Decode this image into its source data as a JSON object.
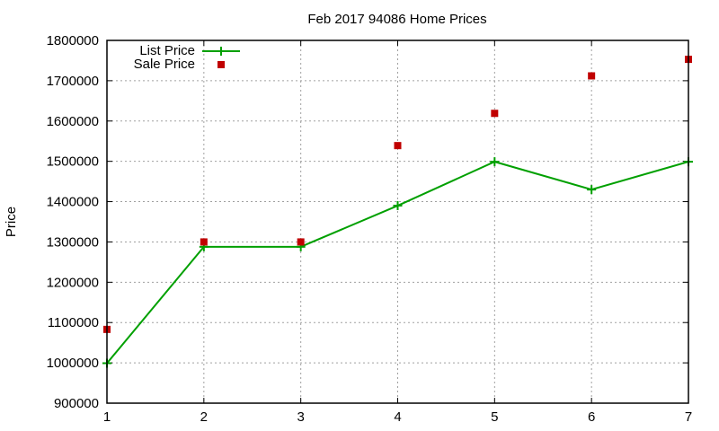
{
  "chart_data": {
    "type": "line",
    "title": "Feb 2017 94086 Home Prices",
    "xlabel": "",
    "ylabel": "Price",
    "x": [
      1,
      2,
      3,
      4,
      5,
      6,
      7
    ],
    "xlim": [
      1,
      7
    ],
    "ylim": [
      900000,
      1800000
    ],
    "xticks": [
      "1",
      "2",
      "3",
      "4",
      "5",
      "6",
      "7"
    ],
    "yticks": [
      "900000",
      "1000000",
      "1100000",
      "1200000",
      "1300000",
      "1400000",
      "1500000",
      "1600000",
      "1700000",
      "1800000"
    ],
    "grid": true,
    "legend_position": "top-left",
    "series": [
      {
        "name": "List Price",
        "style": "linespoints",
        "color": "#00a000",
        "values": [
          999000,
          1288000,
          1288000,
          1390000,
          1499000,
          1430000,
          1499000
        ]
      },
      {
        "name": "Sale Price",
        "style": "points",
        "color": "#c00000",
        "values": [
          1083000,
          1300000,
          1300000,
          1539000,
          1619000,
          1712000,
          1753000
        ]
      }
    ]
  }
}
